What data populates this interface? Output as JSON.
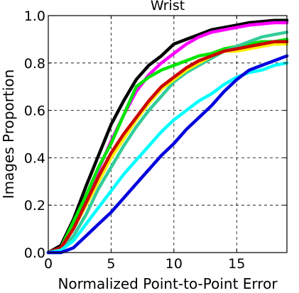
{
  "chart_data": {
    "type": "line",
    "title": "Wrist",
    "xlabel": "Normalized Point-to-Point Error",
    "ylabel": "Images Proportion",
    "xlim": [
      0,
      19
    ],
    "ylim": [
      0,
      1.0
    ],
    "xticks": [
      0,
      5,
      10,
      15
    ],
    "yticks": [
      0.0,
      0.2,
      0.4,
      0.6,
      0.8,
      1.0
    ],
    "xtick_labels": [
      "0",
      "5",
      "10",
      "15"
    ],
    "ytick_labels": [
      "0.0",
      "0.2",
      "0.4",
      "0.6",
      "0.8",
      "1.0"
    ],
    "grid": true,
    "grid_style": "dashed",
    "legend": "none",
    "x": [
      0,
      1,
      2,
      3,
      4,
      5,
      6,
      7,
      8,
      9,
      10,
      11,
      12,
      13,
      14,
      15,
      16,
      17,
      18,
      19
    ],
    "series": [
      {
        "color": "#000000",
        "values": [
          0.0,
          0.03,
          0.14,
          0.28,
          0.41,
          0.54,
          0.64,
          0.73,
          0.79,
          0.83,
          0.88,
          0.9,
          0.92,
          0.94,
          0.95,
          0.96,
          0.97,
          0.975,
          0.98,
          0.98
        ]
      },
      {
        "color": "#ff00ff",
        "values": [
          0.0,
          0.02,
          0.1,
          0.22,
          0.35,
          0.47,
          0.58,
          0.68,
          0.75,
          0.8,
          0.84,
          0.88,
          0.91,
          0.93,
          0.94,
          0.95,
          0.96,
          0.965,
          0.97,
          0.97
        ]
      },
      {
        "color": "#00e600",
        "values": [
          0.0,
          0.02,
          0.13,
          0.24,
          0.36,
          0.46,
          0.58,
          0.7,
          0.74,
          0.77,
          0.79,
          0.81,
          0.83,
          0.84,
          0.86,
          0.87,
          0.88,
          0.89,
          0.89,
          0.9
        ]
      },
      {
        "color": "#33cc99",
        "values": [
          0.0,
          0.01,
          0.07,
          0.16,
          0.27,
          0.36,
          0.45,
          0.53,
          0.6,
          0.66,
          0.72,
          0.76,
          0.79,
          0.82,
          0.85,
          0.87,
          0.89,
          0.91,
          0.92,
          0.93
        ]
      },
      {
        "color": "#ffee00",
        "values": [
          0.0,
          0.02,
          0.1,
          0.2,
          0.3,
          0.4,
          0.48,
          0.56,
          0.63,
          0.69,
          0.73,
          0.77,
          0.8,
          0.83,
          0.85,
          0.85,
          0.86,
          0.87,
          0.88,
          0.88
        ]
      },
      {
        "color": "#cc0000",
        "values": [
          0.0,
          0.02,
          0.1,
          0.21,
          0.32,
          0.42,
          0.5,
          0.57,
          0.64,
          0.7,
          0.74,
          0.78,
          0.81,
          0.83,
          0.85,
          0.86,
          0.87,
          0.88,
          0.89,
          0.89
        ]
      },
      {
        "color": "#00ffff",
        "values": [
          0.0,
          0.01,
          0.05,
          0.12,
          0.19,
          0.26,
          0.33,
          0.39,
          0.45,
          0.51,
          0.56,
          0.6,
          0.64,
          0.67,
          0.71,
          0.74,
          0.76,
          0.77,
          0.79,
          0.8
        ]
      },
      {
        "color": "#0000dd",
        "values": [
          0.0,
          0.0,
          0.02,
          0.07,
          0.12,
          0.17,
          0.23,
          0.29,
          0.35,
          0.41,
          0.46,
          0.52,
          0.57,
          0.62,
          0.68,
          0.73,
          0.77,
          0.79,
          0.81,
          0.83
        ]
      }
    ]
  }
}
